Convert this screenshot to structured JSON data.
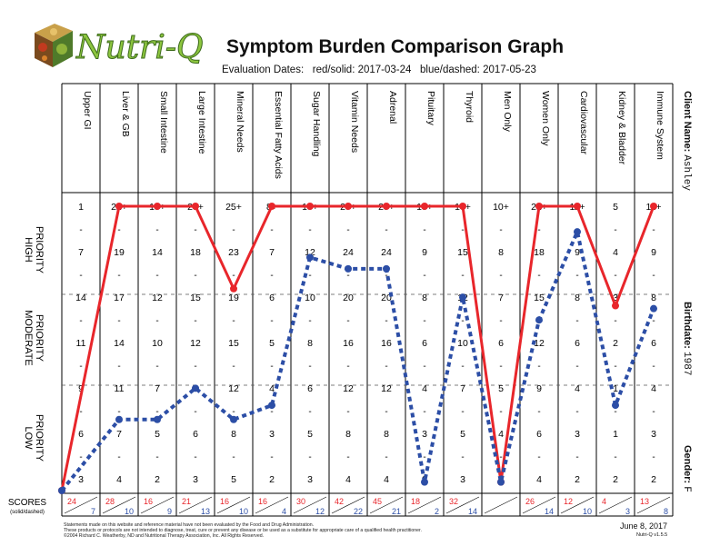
{
  "header": {
    "brand": "Nutri-Q",
    "title": "Symptom Burden Comparison Graph",
    "evaluation_label": "Evaluation Dates:",
    "red_label": "red/solid: 2017-03-24",
    "blue_label": "blue/dashed: 2017-05-23"
  },
  "client": {
    "name_label": "Client Name:",
    "name": "Ashley",
    "birthdate_label": "Birthdate:",
    "birthdate": "1987",
    "gender_label": "Gender:",
    "gender": "F"
  },
  "colors": {
    "red": "#e8262b",
    "blue": "#2c4ea6",
    "grid": "#000000"
  },
  "chart_data": {
    "type": "line",
    "title": "Symptom Burden Comparison Graph",
    "categories": [
      "Upper GI",
      "Liver & GB",
      "Small Intestine",
      "Large Intestine",
      "Mineral Needs",
      "Essential Fatty Acids",
      "Sugar Handling",
      "Vitamin Needs",
      "Adrenal",
      "Pituitary",
      "Thyroid",
      "Men Only",
      "Women Only",
      "Cardiovascular",
      "Kidney & Bladder",
      "Immune System"
    ],
    "priority_zones": [
      "HIGH PRIORITY",
      "MODERATE PRIORITY",
      "LOW PRIORITY"
    ],
    "scale_labels": [
      [
        "1",
        "7",
        "14",
        "11",
        "9",
        "6",
        "3"
      ],
      [
        "22+",
        "19",
        "17",
        "14",
        "11",
        "7",
        "4"
      ],
      [
        "18+",
        "14",
        "12",
        "10",
        "7",
        "5",
        "2"
      ],
      [
        "23+",
        "18",
        "15",
        "12",
        "9",
        "6",
        "3"
      ],
      [
        "25+",
        "23",
        "19",
        "15",
        "12",
        "8",
        "5"
      ],
      [
        "8+",
        "7",
        "6",
        "5",
        "4",
        "3",
        "2"
      ],
      [
        "13+",
        "12",
        "10",
        "8",
        "6",
        "5",
        "3"
      ],
      [
        "29+",
        "24",
        "20",
        "16",
        "12",
        "8",
        "4"
      ],
      [
        "29+",
        "24",
        "20",
        "16",
        "12",
        "8",
        "4"
      ],
      [
        "13+",
        "9",
        "8",
        "6",
        "4",
        "3",
        "2"
      ],
      [
        "17+",
        "15",
        "12",
        "10",
        "7",
        "5",
        "3"
      ],
      [
        "10+",
        "8",
        "7",
        "6",
        "5",
        "4",
        "2"
      ],
      [
        "21+",
        "18",
        "15",
        "12",
        "9",
        "6",
        "4"
      ],
      [
        "11+",
        "9",
        "8",
        "6",
        "4",
        "3",
        "2"
      ],
      [
        "5",
        "4",
        "3",
        "2",
        "1",
        "1",
        "2"
      ],
      [
        "11+",
        "9",
        "8",
        "6",
        "4",
        "3",
        "2"
      ]
    ],
    "scores_label": "SCORES",
    "scores_sublabel": "(solid/dashed)",
    "series": [
      {
        "name": "red/solid: 2017-03-24",
        "style": "solid",
        "color": "#e8262b",
        "scores": [
          "24",
          "28",
          "16",
          "21",
          "16",
          "16",
          "30",
          "42",
          "45",
          "18",
          "32",
          "",
          "26",
          "12",
          "4",
          "13"
        ],
        "level": [
          0.0,
          1.0,
          1.0,
          1.0,
          0.71,
          1.0,
          1.0,
          1.0,
          1.0,
          1.0,
          1.0,
          0.03,
          1.0,
          1.0,
          0.65,
          1.0
        ]
      },
      {
        "name": "blue/dashed: 2017-05-23",
        "style": "dashed",
        "color": "#2c4ea6",
        "scores": [
          "7",
          "10",
          "9",
          "13",
          "10",
          "4",
          "12",
          "22",
          "21",
          "2",
          "14",
          "",
          "14",
          "10",
          "3",
          "8"
        ],
        "level": [
          0.0,
          0.25,
          0.25,
          0.36,
          0.25,
          0.3,
          0.82,
          0.78,
          0.78,
          0.03,
          0.68,
          0.03,
          0.6,
          0.91,
          0.3,
          0.64
        ]
      }
    ]
  },
  "footer": {
    "disclaimer_1": "Statements made on this website and reference material have not been evaluated by the Food and Drug Administration.",
    "disclaimer_2": "These products or protocols are not intended to diagnose, treat, cure or prevent any disease or be used as a substitute for appropriate care of a qualified health practitioner.",
    "copyright": "©2004 Richard C. Weatherby, ND and Nutritional Therapy Association, Inc. All Rights Reserved.",
    "date": "June 8, 2017",
    "version": "Nutri-Q v1.5.5"
  }
}
